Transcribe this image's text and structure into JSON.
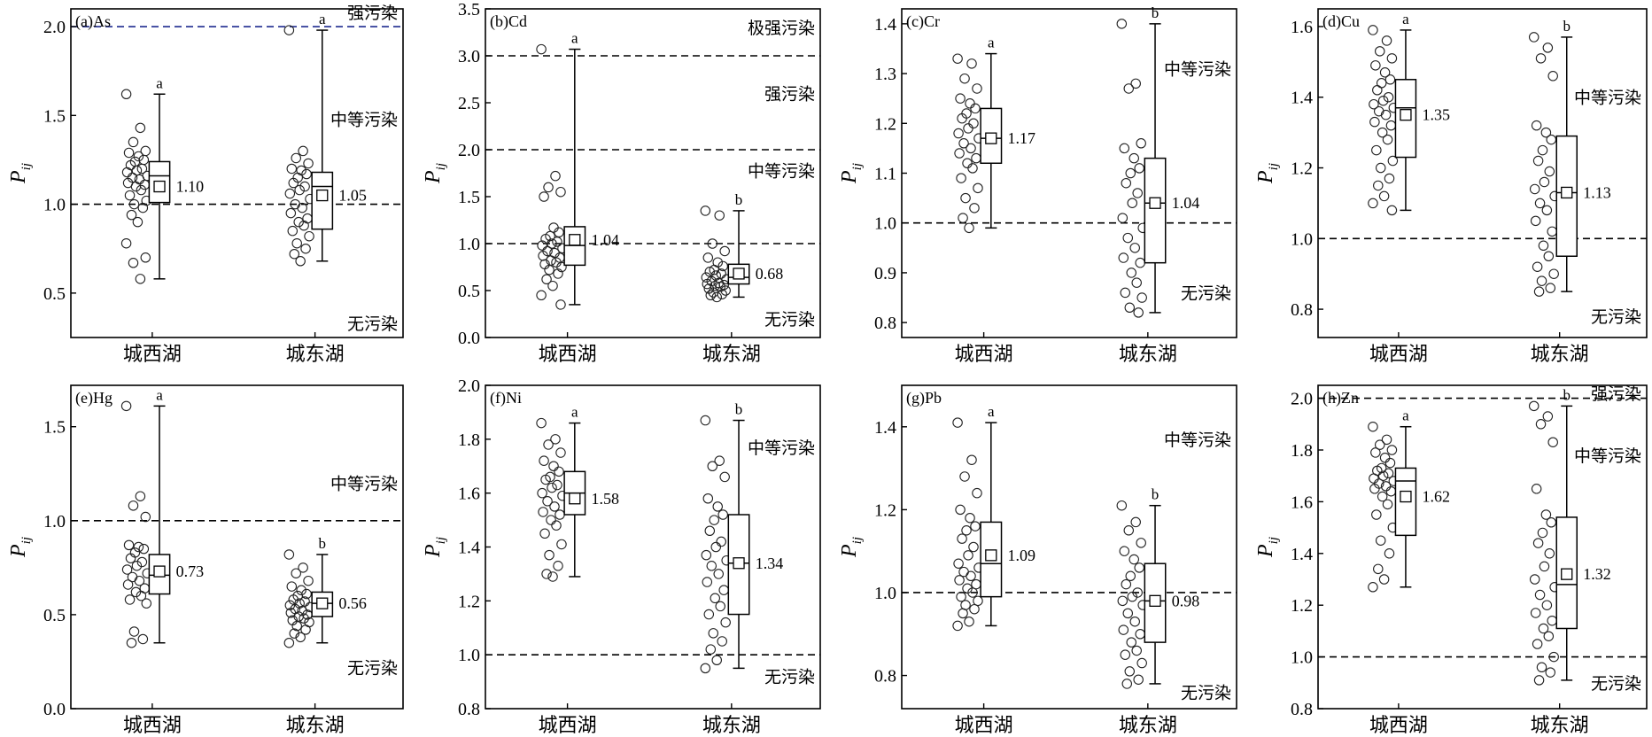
{
  "chart_data": [
    {
      "type": "boxplot",
      "panel_label": "(a)As",
      "ylabel": "P",
      "ylabel_sub": "ij",
      "ylim": [
        0.25,
        2.1
      ],
      "yticks": [
        0.5,
        1.0,
        1.5,
        2.0
      ],
      "tick_decimals": 1,
      "categories": [
        "城西湖",
        "城东湖"
      ],
      "thresholds": [
        {
          "value": 1.0,
          "color": "#000000"
        },
        {
          "value": 2.0,
          "color": "#1f2a8f"
        }
      ],
      "zone_labels": [
        {
          "text": "强污染",
          "value": 2.08
        },
        {
          "text": "中等污染",
          "value": 1.48
        },
        {
          "text": "无污染",
          "value": 0.33
        }
      ],
      "groups": [
        {
          "category": "城西湖",
          "min": 0.58,
          "q1": 1.01,
          "median": 1.16,
          "q3": 1.24,
          "max": 1.62,
          "mean": 1.1,
          "mean_label": "1.10",
          "sig": "a",
          "points": [
            1.62,
            1.43,
            1.35,
            1.3,
            1.29,
            1.27,
            1.25,
            1.24,
            1.22,
            1.2,
            1.19,
            1.18,
            1.16,
            1.15,
            1.14,
            1.12,
            1.11,
            1.1,
            1.08,
            1.05,
            1.02,
            1.0,
            0.98,
            0.94,
            0.9,
            0.78,
            0.7,
            0.67,
            0.58
          ]
        },
        {
          "category": "城东湖",
          "min": 0.68,
          "q1": 0.86,
          "median": 1.1,
          "q3": 1.18,
          "max": 1.98,
          "mean": 1.05,
          "mean_label": "1.05",
          "sig": "a",
          "points": [
            1.98,
            1.3,
            1.26,
            1.23,
            1.2,
            1.19,
            1.17,
            1.15,
            1.12,
            1.1,
            1.08,
            1.06,
            1.03,
            1.0,
            0.98,
            0.95,
            0.92,
            0.9,
            0.88,
            0.85,
            0.82,
            0.78,
            0.75,
            0.72,
            0.68
          ]
        }
      ]
    },
    {
      "type": "boxplot",
      "panel_label": "(b)Cd",
      "ylabel": "P",
      "ylabel_sub": "ij",
      "ylim": [
        0.0,
        3.5
      ],
      "yticks": [
        0.0,
        0.5,
        1.0,
        1.5,
        2.0,
        2.5,
        3.0,
        3.5
      ],
      "tick_decimals": 1,
      "categories": [
        "城西湖",
        "城东湖"
      ],
      "thresholds": [
        {
          "value": 1.0,
          "color": "#000000"
        },
        {
          "value": 2.0,
          "color": "#000000"
        },
        {
          "value": 3.0,
          "color": "#000000"
        }
      ],
      "zone_labels": [
        {
          "text": "极强污染",
          "value": 3.3
        },
        {
          "text": "强污染",
          "value": 2.6
        },
        {
          "text": "中等污染",
          "value": 1.78
        },
        {
          "text": "无污染",
          "value": 0.2
        }
      ],
      "groups": [
        {
          "category": "城西湖",
          "min": 0.35,
          "q1": 0.77,
          "median": 0.98,
          "q3": 1.18,
          "max": 3.07,
          "mean": 1.04,
          "mean_label": "1.04",
          "sig": "a",
          "points": [
            3.07,
            1.72,
            1.6,
            1.55,
            1.5,
            1.17,
            1.12,
            1.08,
            1.05,
            1.02,
            1.0,
            0.98,
            0.95,
            0.92,
            0.9,
            0.87,
            0.85,
            0.82,
            0.8,
            0.78,
            0.75,
            0.72,
            0.68,
            0.62,
            0.55,
            0.45,
            0.35
          ]
        },
        {
          "category": "城东湖",
          "min": 0.43,
          "q1": 0.57,
          "median": 0.64,
          "q3": 0.78,
          "max": 1.35,
          "mean": 0.68,
          "mean_label": "0.68",
          "sig": "b",
          "points": [
            1.35,
            1.3,
            1.0,
            0.92,
            0.85,
            0.8,
            0.76,
            0.72,
            0.7,
            0.68,
            0.66,
            0.64,
            0.62,
            0.6,
            0.58,
            0.57,
            0.56,
            0.55,
            0.54,
            0.52,
            0.5,
            0.48,
            0.46,
            0.45,
            0.43
          ]
        }
      ]
    },
    {
      "type": "boxplot",
      "panel_label": "(c)Cr",
      "ylabel": "P",
      "ylabel_sub": "ij",
      "ylim": [
        0.77,
        1.43
      ],
      "yticks": [
        0.8,
        0.9,
        1.0,
        1.1,
        1.2,
        1.3,
        1.4
      ],
      "tick_decimals": 1,
      "categories": [
        "城西湖",
        "城东湖"
      ],
      "thresholds": [
        {
          "value": 1.0,
          "color": "#000000"
        }
      ],
      "zone_labels": [
        {
          "text": "中等污染",
          "value": 1.31
        },
        {
          "text": "无污染",
          "value": 0.86
        }
      ],
      "groups": [
        {
          "category": "城西湖",
          "min": 0.99,
          "q1": 1.12,
          "median": 1.17,
          "q3": 1.23,
          "max": 1.34,
          "mean": 1.17,
          "mean_label": "1.17",
          "sig": "a",
          "points": [
            1.33,
            1.32,
            1.29,
            1.27,
            1.25,
            1.24,
            1.23,
            1.22,
            1.21,
            1.2,
            1.19,
            1.18,
            1.17,
            1.16,
            1.15,
            1.14,
            1.13,
            1.12,
            1.11,
            1.09,
            1.07,
            1.05,
            1.03,
            1.01,
            0.99
          ]
        },
        {
          "category": "城东湖",
          "min": 0.82,
          "q1": 0.92,
          "median": 1.04,
          "q3": 1.13,
          "max": 1.4,
          "mean": 1.04,
          "mean_label": "1.04",
          "sig": "b",
          "points": [
            1.4,
            1.28,
            1.27,
            1.16,
            1.15,
            1.13,
            1.11,
            1.1,
            1.08,
            1.06,
            1.04,
            1.01,
            0.99,
            0.97,
            0.95,
            0.93,
            0.92,
            0.9,
            0.88,
            0.86,
            0.85,
            0.83,
            0.82
          ]
        }
      ]
    },
    {
      "type": "boxplot",
      "panel_label": "(d)Cu",
      "ylabel": "P",
      "ylabel_sub": "ij",
      "ylim": [
        0.72,
        1.65
      ],
      "yticks": [
        0.8,
        1.0,
        1.2,
        1.4,
        1.6
      ],
      "tick_decimals": 1,
      "categories": [
        "城西湖",
        "城东湖"
      ],
      "thresholds": [
        {
          "value": 1.0,
          "color": "#000000"
        }
      ],
      "zone_labels": [
        {
          "text": "中等污染",
          "value": 1.4
        },
        {
          "text": "无污染",
          "value": 0.78
        }
      ],
      "groups": [
        {
          "category": "城西湖",
          "min": 1.08,
          "q1": 1.23,
          "median": 1.37,
          "q3": 1.45,
          "max": 1.59,
          "mean": 1.35,
          "mean_label": "1.35",
          "sig": "a",
          "points": [
            1.59,
            1.56,
            1.53,
            1.51,
            1.49,
            1.47,
            1.45,
            1.44,
            1.42,
            1.4,
            1.39,
            1.38,
            1.37,
            1.36,
            1.35,
            1.33,
            1.32,
            1.3,
            1.28,
            1.25,
            1.22,
            1.2,
            1.17,
            1.15,
            1.12,
            1.1,
            1.08
          ]
        },
        {
          "category": "城东湖",
          "min": 0.85,
          "q1": 0.95,
          "median": 1.13,
          "q3": 1.29,
          "max": 1.57,
          "mean": 1.13,
          "mean_label": "1.13",
          "sig": "b",
          "points": [
            1.57,
            1.54,
            1.51,
            1.46,
            1.32,
            1.3,
            1.28,
            1.25,
            1.22,
            1.19,
            1.16,
            1.14,
            1.12,
            1.1,
            1.08,
            1.05,
            1.02,
            0.98,
            0.95,
            0.92,
            0.9,
            0.88,
            0.86,
            0.85
          ]
        }
      ]
    },
    {
      "type": "boxplot",
      "panel_label": "(e)Hg",
      "ylabel": "P",
      "ylabel_sub": "ij",
      "ylim": [
        0.0,
        1.72
      ],
      "yticks": [
        0.0,
        0.5,
        1.0,
        1.5
      ],
      "tick_decimals": 1,
      "categories": [
        "城西湖",
        "城东湖"
      ],
      "thresholds": [
        {
          "value": 1.0,
          "color": "#000000"
        }
      ],
      "zone_labels": [
        {
          "text": "中等污染",
          "value": 1.2
        },
        {
          "text": "无污染",
          "value": 0.22
        }
      ],
      "groups": [
        {
          "category": "城西湖",
          "min": 0.35,
          "q1": 0.61,
          "median": 0.71,
          "q3": 0.82,
          "max": 1.61,
          "mean": 0.73,
          "mean_label": "0.73",
          "sig": "a",
          "points": [
            1.61,
            1.13,
            1.08,
            1.02,
            0.87,
            0.86,
            0.85,
            0.83,
            0.8,
            0.78,
            0.76,
            0.74,
            0.72,
            0.7,
            0.68,
            0.66,
            0.64,
            0.62,
            0.6,
            0.58,
            0.56,
            0.41,
            0.37,
            0.35
          ]
        },
        {
          "category": "城东湖",
          "min": 0.35,
          "q1": 0.49,
          "median": 0.56,
          "q3": 0.62,
          "max": 0.82,
          "mean": 0.56,
          "mean_label": "0.56",
          "sig": "b",
          "points": [
            0.82,
            0.75,
            0.72,
            0.68,
            0.65,
            0.63,
            0.61,
            0.6,
            0.58,
            0.57,
            0.56,
            0.55,
            0.54,
            0.53,
            0.52,
            0.51,
            0.5,
            0.49,
            0.48,
            0.47,
            0.46,
            0.44,
            0.42,
            0.4,
            0.38,
            0.35
          ]
        }
      ]
    },
    {
      "type": "boxplot",
      "panel_label": "(f)Ni",
      "ylabel": "P",
      "ylabel_sub": "ij",
      "ylim": [
        0.8,
        2.0
      ],
      "yticks": [
        0.8,
        1.0,
        1.2,
        1.4,
        1.6,
        1.8,
        2.0
      ],
      "tick_decimals": 1,
      "categories": [
        "城西湖",
        "城东湖"
      ],
      "thresholds": [
        {
          "value": 1.0,
          "color": "#000000"
        }
      ],
      "zone_labels": [
        {
          "text": "中等污染",
          "value": 1.77
        },
        {
          "text": "无污染",
          "value": 0.92
        }
      ],
      "groups": [
        {
          "category": "城西湖",
          "min": 1.29,
          "q1": 1.52,
          "median": 1.6,
          "q3": 1.68,
          "max": 1.86,
          "mean": 1.58,
          "mean_label": "1.58",
          "sig": "a",
          "points": [
            1.86,
            1.8,
            1.78,
            1.75,
            1.72,
            1.7,
            1.68,
            1.66,
            1.65,
            1.63,
            1.62,
            1.6,
            1.59,
            1.57,
            1.55,
            1.53,
            1.52,
            1.5,
            1.48,
            1.45,
            1.41,
            1.37,
            1.33,
            1.3,
            1.29
          ]
        },
        {
          "category": "城东湖",
          "min": 0.95,
          "q1": 1.15,
          "median": 1.34,
          "q3": 1.52,
          "max": 1.87,
          "mean": 1.34,
          "mean_label": "1.34",
          "sig": "b",
          "points": [
            1.87,
            1.72,
            1.7,
            1.66,
            1.58,
            1.55,
            1.52,
            1.5,
            1.46,
            1.42,
            1.4,
            1.37,
            1.35,
            1.33,
            1.3,
            1.27,
            1.24,
            1.21,
            1.18,
            1.15,
            1.12,
            1.08,
            1.05,
            1.02,
            0.98,
            0.95
          ]
        }
      ]
    },
    {
      "type": "boxplot",
      "panel_label": "(g)Pb",
      "ylabel": "P",
      "ylabel_sub": "ij",
      "ylim": [
        0.72,
        1.5
      ],
      "yticks": [
        0.8,
        1.0,
        1.2,
        1.4
      ],
      "tick_decimals": 1,
      "categories": [
        "城西湖",
        "城东湖"
      ],
      "thresholds": [
        {
          "value": 1.0,
          "color": "#000000"
        }
      ],
      "zone_labels": [
        {
          "text": "中等污染",
          "value": 1.37
        },
        {
          "text": "无污染",
          "value": 0.76
        }
      ],
      "groups": [
        {
          "category": "城西湖",
          "min": 0.92,
          "q1": 0.99,
          "median": 1.07,
          "q3": 1.17,
          "max": 1.41,
          "mean": 1.09,
          "mean_label": "1.09",
          "sig": "a",
          "points": [
            1.41,
            1.32,
            1.28,
            1.24,
            1.2,
            1.18,
            1.16,
            1.15,
            1.13,
            1.11,
            1.09,
            1.07,
            1.06,
            1.05,
            1.04,
            1.03,
            1.02,
            1.01,
            1.0,
            0.99,
            0.98,
            0.97,
            0.96,
            0.95,
            0.93,
            0.92
          ]
        },
        {
          "category": "城东湖",
          "min": 0.78,
          "q1": 0.88,
          "median": 0.98,
          "q3": 1.07,
          "max": 1.21,
          "mean": 0.98,
          "mean_label": "0.98",
          "sig": "b",
          "points": [
            1.21,
            1.17,
            1.15,
            1.12,
            1.1,
            1.08,
            1.06,
            1.04,
            1.02,
            1.0,
            0.99,
            0.98,
            0.97,
            0.95,
            0.93,
            0.91,
            0.9,
            0.88,
            0.86,
            0.85,
            0.83,
            0.81,
            0.79,
            0.78
          ]
        }
      ]
    },
    {
      "type": "boxplot",
      "panel_label": "(h)Zn",
      "ylabel": "P",
      "ylabel_sub": "ij",
      "ylim": [
        0.8,
        2.05
      ],
      "yticks": [
        0.8,
        1.0,
        1.2,
        1.4,
        1.6,
        1.8,
        2.0
      ],
      "tick_decimals": 1,
      "categories": [
        "城西湖",
        "城东湖"
      ],
      "thresholds": [
        {
          "value": 1.0,
          "color": "#000000"
        },
        {
          "value": 2.0,
          "color": "#000000"
        }
      ],
      "zone_labels": [
        {
          "text": "强污染",
          "value": 2.02
        },
        {
          "text": "中等污染",
          "value": 1.78
        },
        {
          "text": "无污染",
          "value": 0.9
        }
      ],
      "groups": [
        {
          "category": "城西湖",
          "min": 1.27,
          "q1": 1.47,
          "median": 1.68,
          "q3": 1.73,
          "max": 1.89,
          "mean": 1.62,
          "mean_label": "1.62",
          "sig": "a",
          "points": [
            1.89,
            1.84,
            1.82,
            1.8,
            1.79,
            1.77,
            1.75,
            1.73,
            1.72,
            1.71,
            1.7,
            1.69,
            1.68,
            1.67,
            1.66,
            1.65,
            1.64,
            1.62,
            1.59,
            1.55,
            1.5,
            1.45,
            1.4,
            1.34,
            1.3,
            1.27
          ]
        },
        {
          "category": "城东湖",
          "min": 0.91,
          "q1": 1.11,
          "median": 1.28,
          "q3": 1.54,
          "max": 1.97,
          "mean": 1.32,
          "mean_label": "1.32",
          "sig": "b",
          "points": [
            1.97,
            1.93,
            1.9,
            1.83,
            1.65,
            1.55,
            1.52,
            1.48,
            1.44,
            1.4,
            1.35,
            1.3,
            1.27,
            1.24,
            1.2,
            1.17,
            1.14,
            1.11,
            1.08,
            1.05,
            1.0,
            0.96,
            0.94,
            0.91
          ]
        }
      ]
    }
  ]
}
